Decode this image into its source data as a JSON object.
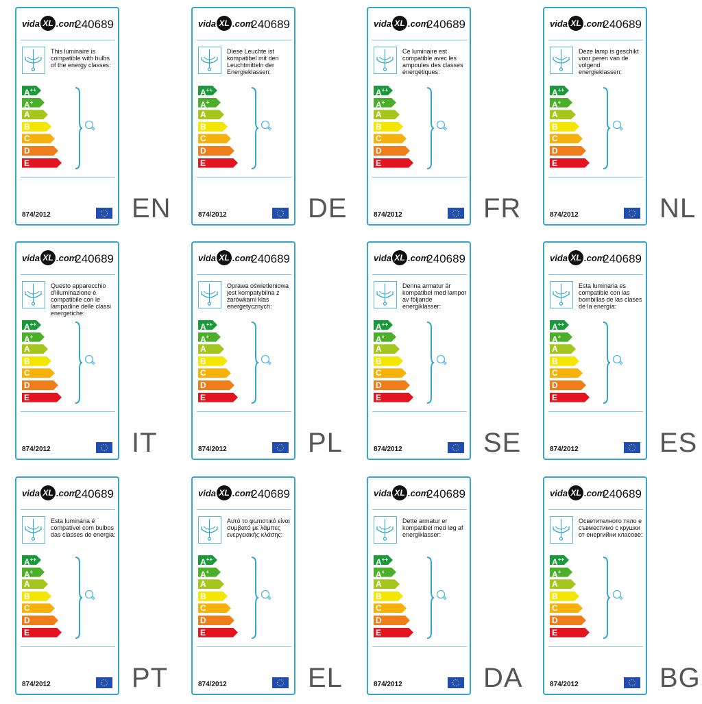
{
  "labels": [
    {
      "lang": "EN",
      "text": "This luminaire is compatible with bulbs of the energy classes:"
    },
    {
      "lang": "DE",
      "text": "Diese Leuchte ist kompatibel mit den Leuchtmitteln der Energieklassen:"
    },
    {
      "lang": "FR",
      "text": "Ce luminaire est compatible avec les ampoules des classes énergétiques:"
    },
    {
      "lang": "NL",
      "text": "Deze lamp is geschikt voor peren van de volgend energieklassen:"
    },
    {
      "lang": "IT",
      "text": "Questo apparecchio d'illuminazione è compatibile con le lampadine delle classi energetiche:"
    },
    {
      "lang": "PL",
      "text": "Oprawa oświetleniowa jest kompatybilna z żarówkami klas energetycznych:"
    },
    {
      "lang": "SE",
      "text": "Denna armatur är kompatibel med lampor av följande energiklasser:"
    },
    {
      "lang": "ES",
      "text": "Esta luminaria es compatible con las bombillas de las clases de la energía:"
    },
    {
      "lang": "PT",
      "text": "Esta luminária é compatível com bulbos das classes de energia:"
    },
    {
      "lang": "EL",
      "text": "Αυτό το φωτιστικό είναι συμβατό με λάμπες ενεργειακής κλάσης:"
    },
    {
      "lang": "DA",
      "text": "Dette armatur er kompatibel med løg af energiklasser:"
    },
    {
      "lang": "BG",
      "text": "Осветителното тяло е съвместимо с крушки от енергийни класове:"
    }
  ],
  "common": {
    "brand_pre": "vida",
    "brand_mid": "XL",
    "brand_post": ".com",
    "product_code": "240689",
    "regulation": "874/2012"
  },
  "energy_classes": [
    {
      "base": "A",
      "sup": "++",
      "color": "#1a9a3a"
    },
    {
      "base": "A",
      "sup": "+",
      "color": "#4caf2a"
    },
    {
      "base": "A",
      "sup": "",
      "color": "#a4c61d"
    },
    {
      "base": "B",
      "sup": "",
      "color": "#f3e600"
    },
    {
      "base": "C",
      "sup": "",
      "color": "#f6b10a"
    },
    {
      "base": "D",
      "sup": "",
      "color": "#ef7d1a"
    },
    {
      "base": "E",
      "sup": "",
      "color": "#e3131f"
    }
  ],
  "colors": {
    "frame": "#33a6cf",
    "eu_flag": "#1f4db3"
  },
  "icons": {
    "lamp": "chandelier-icon",
    "bulb": "lightbulb-icon",
    "eu": "eu-flag-icon"
  }
}
